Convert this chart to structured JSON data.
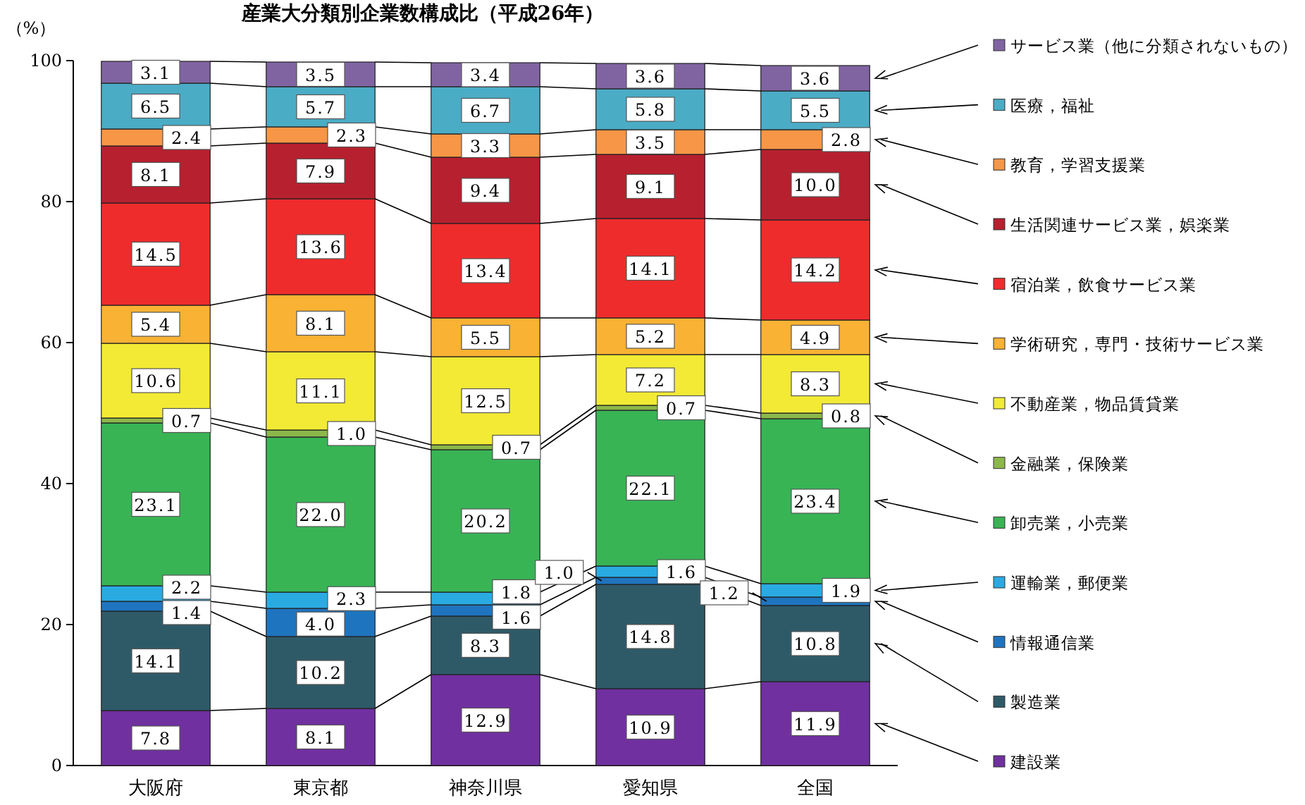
{
  "chart_data": {
    "type": "bar",
    "stacked": true,
    "title": "産業大分類別企業数構成比（平成26年）",
    "ylabel": "（%）",
    "categories": [
      "大阪府",
      "東京都",
      "神奈川県",
      "愛知県",
      "全国"
    ],
    "ylim": [
      0,
      100
    ],
    "yticks": [
      0,
      20,
      40,
      60,
      80,
      100
    ],
    "grid": false,
    "legend": "right",
    "series": [
      {
        "name": "建設業",
        "color": "#7030a0",
        "values": [
          7.8,
          8.1,
          12.9,
          10.9,
          11.9
        ],
        "value_labels": [
          "7.8",
          "8.1",
          "12.9",
          "10.9",
          "11.9"
        ]
      },
      {
        "name": "製造業",
        "color": "#2e5a68",
        "values": [
          14.1,
          10.2,
          8.3,
          14.8,
          10.8
        ],
        "value_labels": [
          "14.1",
          "10.2",
          "8.3",
          "14.8",
          "10.8"
        ]
      },
      {
        "name": "情報通信業",
        "color": "#1f74bf",
        "values": [
          1.4,
          4.0,
          1.6,
          1.0,
          1.2
        ],
        "value_labels": [
          "1.4",
          "4.0",
          "1.6",
          "1.0",
          "1.2"
        ]
      },
      {
        "name": "運輸業，郵便業",
        "color": "#29abe2",
        "values": [
          2.2,
          2.3,
          1.8,
          1.6,
          1.9
        ],
        "value_labels": [
          "2.2",
          "2.3",
          "1.8",
          "1.6",
          "1.9"
        ]
      },
      {
        "name": "卸売業，小売業",
        "color": "#38b455",
        "values": [
          23.1,
          22.0,
          20.2,
          22.1,
          23.4
        ],
        "value_labels": [
          "23.1",
          "22.0",
          "20.2",
          "22.1",
          "23.4"
        ]
      },
      {
        "name": "金融業，保険業",
        "color": "#8cb84a",
        "values": [
          0.7,
          1.0,
          0.7,
          0.7,
          0.8
        ],
        "value_labels": [
          "0.7",
          "1.0",
          "0.7",
          "0.7",
          "0.8"
        ]
      },
      {
        "name": "不動産業，物品賃貸業",
        "color": "#f2ea35",
        "values": [
          10.6,
          11.1,
          12.5,
          7.2,
          8.3
        ],
        "value_labels": [
          "10.6",
          "11.1",
          "12.5",
          "7.2",
          "8.3"
        ]
      },
      {
        "name": "学術研究，専門・技術サービス業",
        "color": "#f9b233",
        "values": [
          5.4,
          8.1,
          5.5,
          5.2,
          4.9
        ],
        "value_labels": [
          "5.4",
          "8.1",
          "5.5",
          "5.2",
          "4.9"
        ]
      },
      {
        "name": "宿泊業，飲食サービス業",
        "color": "#ee2c2c",
        "values": [
          14.5,
          13.6,
          13.4,
          14.1,
          14.2
        ],
        "value_labels": [
          "14.5",
          "13.6",
          "13.4",
          "14.1",
          "14.2"
        ]
      },
      {
        "name": "生活関連サービス業，娯楽業",
        "color": "#b7202e",
        "values": [
          8.1,
          7.9,
          9.4,
          9.1,
          10.0
        ],
        "value_labels": [
          "8.1",
          "7.9",
          "9.4",
          "9.1",
          "10.0"
        ]
      },
      {
        "name": "教育，学習支援業",
        "color": "#f79646",
        "values": [
          2.4,
          2.3,
          3.3,
          3.5,
          2.8
        ],
        "value_labels": [
          "2.4",
          "2.3",
          "3.3",
          "3.5",
          "2.8"
        ]
      },
      {
        "name": "医療，福祉",
        "color": "#4bacc6",
        "values": [
          6.5,
          5.7,
          6.7,
          5.8,
          5.5
        ],
        "value_labels": [
          "6.5",
          "5.7",
          "6.7",
          "5.8",
          "5.5"
        ]
      },
      {
        "name": "サービス業（他に分類されないもの）",
        "color": "#8064a2",
        "values": [
          3.1,
          3.5,
          3.4,
          3.6,
          3.6
        ],
        "value_labels": [
          "3.1",
          "3.5",
          "3.4",
          "3.6",
          "3.6"
        ]
      }
    ]
  }
}
